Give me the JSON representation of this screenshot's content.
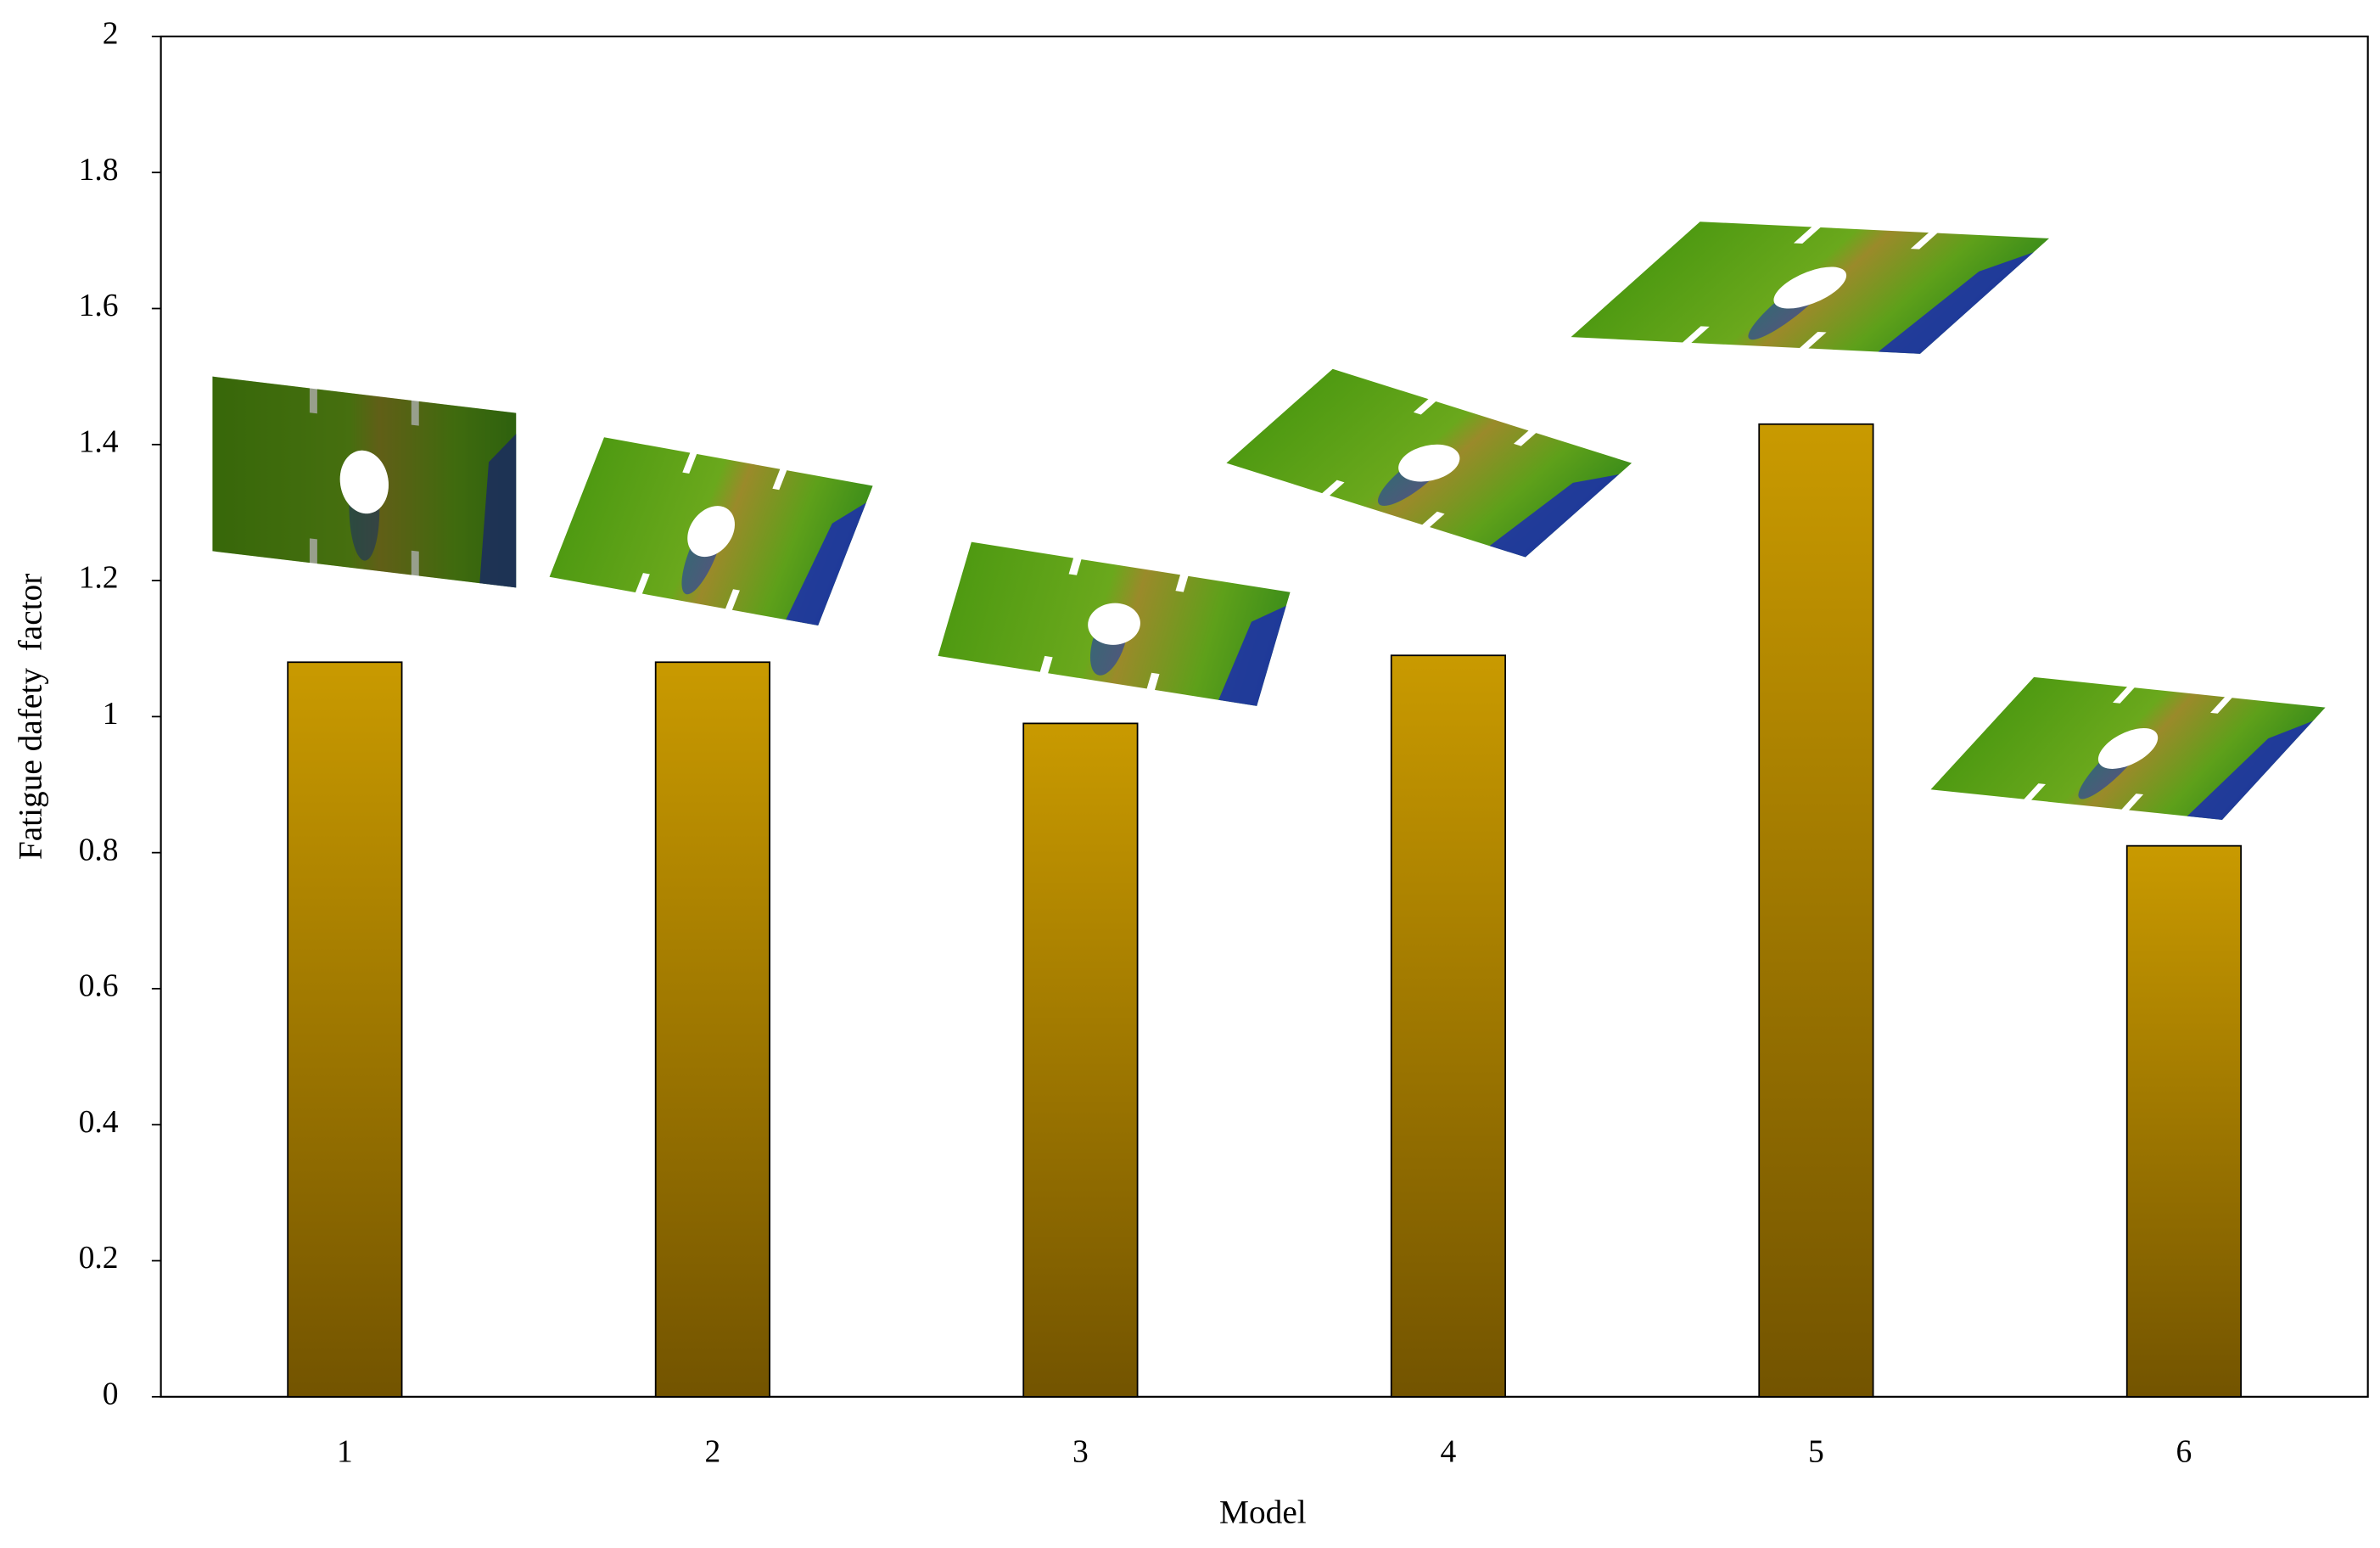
{
  "chart_data": {
    "type": "bar",
    "xlabel": "Model",
    "ylabel": "Fatigue dafety  factor",
    "categories": [
      "1",
      "2",
      "3",
      "4",
      "5",
      "6"
    ],
    "values": [
      1.08,
      1.08,
      0.99,
      1.09,
      1.43,
      0.81
    ],
    "color": [
      "#c99a00",
      "#735400"
    ],
    "ylim": [
      0,
      2
    ],
    "yticks": [
      0,
      0.2,
      0.4,
      0.6,
      0.8,
      1,
      1.2,
      1.4,
      1.6,
      1.8,
      2
    ],
    "grid": false
  }
}
